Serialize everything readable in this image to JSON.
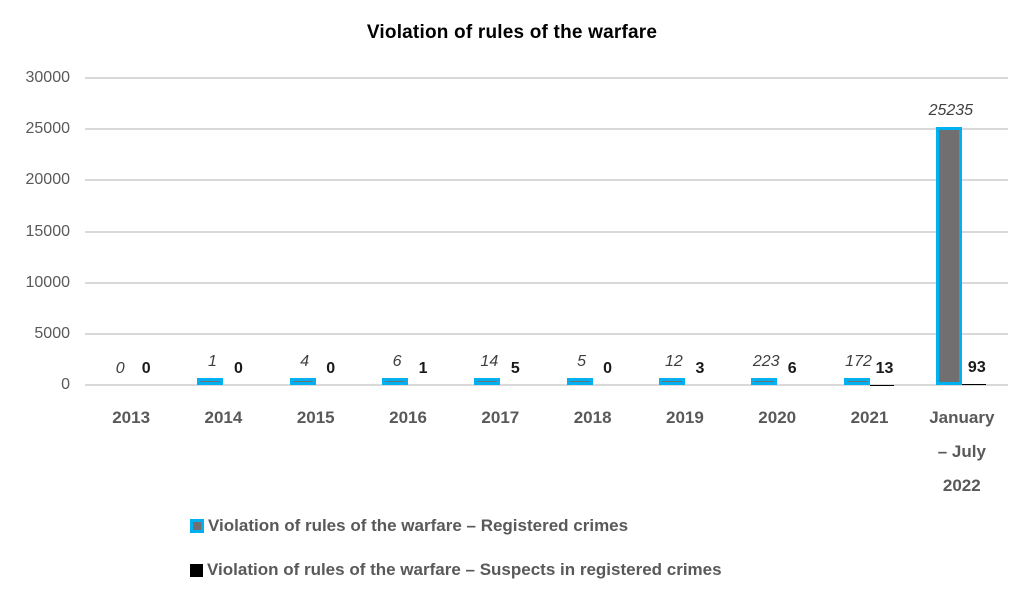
{
  "chart_data": {
    "type": "bar",
    "title": "Violation of rules of the warfare",
    "categories": [
      "2013",
      "2014",
      "2015",
      "2016",
      "2017",
      "2018",
      "2019",
      "2020",
      "2021",
      "January – July 2022"
    ],
    "series": [
      {
        "name": "Violation of rules of the warfare – Registered crimes",
        "values": [
          0,
          1,
          4,
          6,
          14,
          5,
          12,
          223,
          172,
          25235
        ],
        "fill": "#716F6F",
        "border": "#00B0F0"
      },
      {
        "name": "Violation of rules of the warfare – Suspects in registered crimes",
        "values": [
          0,
          0,
          0,
          1,
          5,
          0,
          3,
          6,
          13,
          93
        ],
        "fill": "#000000"
      }
    ],
    "ylim": [
      0,
      30000
    ],
    "yticks": [
      0,
      5000,
      10000,
      15000,
      20000,
      25000,
      30000
    ],
    "grid": true,
    "legend_position": "bottom-left",
    "colors": {
      "gridline": "#D9D9D9",
      "axis_text": "#595959",
      "registered_label_text": "#3F3F3F",
      "suspects_label_text": "#1A1A1A",
      "title_text": "#000000"
    }
  }
}
